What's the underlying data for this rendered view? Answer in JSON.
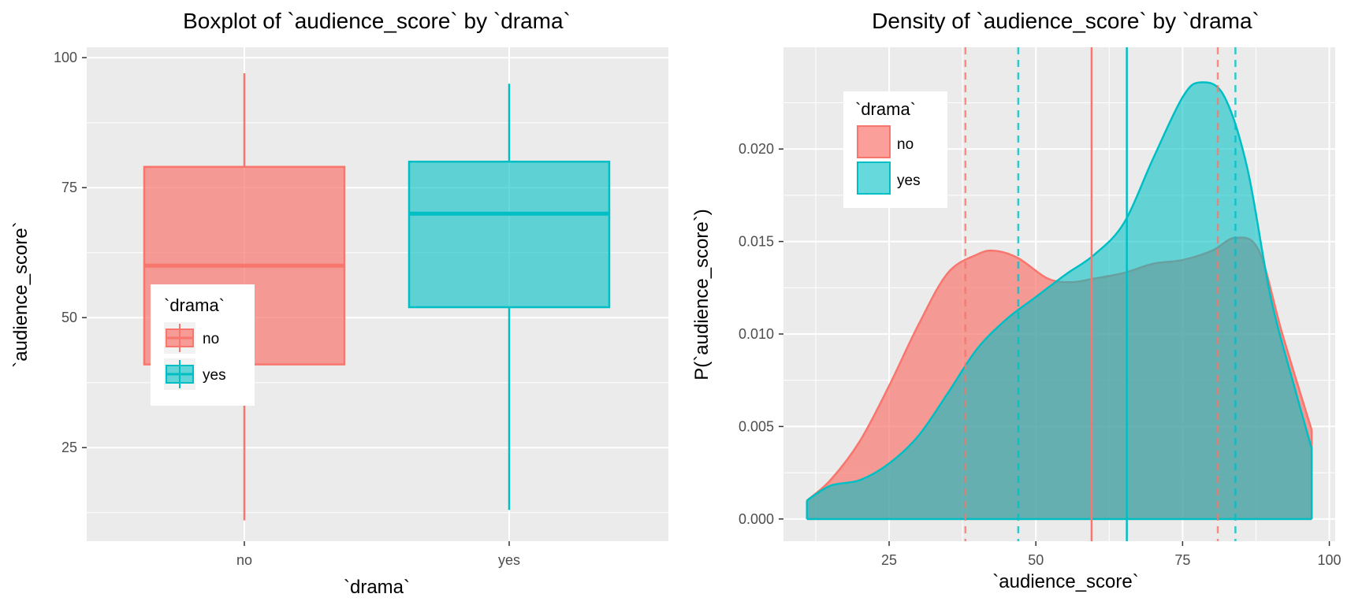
{
  "colors": {
    "no": "#F8766D",
    "yes": "#00BFC4",
    "panel": "#EBEBEB",
    "grid": "#FFFFFF",
    "overlap": "#7AA7A5"
  },
  "chart_data": [
    {
      "type": "box",
      "title": "Boxplot of `audience_score` by `drama`",
      "xlabel": "`drama`",
      "ylabel": "`audience_score`",
      "categories": [
        "no",
        "yes"
      ],
      "ylim": [
        7,
        102
      ],
      "y_ticks": [
        25,
        50,
        75,
        100
      ],
      "y_tick_labels": [
        "25",
        "50",
        "75",
        "100"
      ],
      "grid": true,
      "legend": {
        "title": "`drama`",
        "position": "left-middle",
        "entries": [
          "no",
          "yes"
        ]
      },
      "boxes": [
        {
          "category": "no",
          "min": 11,
          "q1": 41,
          "median": 60,
          "q3": 79,
          "max": 97
        },
        {
          "category": "yes",
          "min": 13,
          "q1": 52,
          "median": 70,
          "q3": 80,
          "max": 95
        }
      ]
    },
    {
      "type": "area",
      "title": "Density of `audience_score` by `drama`",
      "xlabel": "`audience_score`",
      "ylabel": "P(`audience_score`)",
      "xlim": [
        7,
        101
      ],
      "ylim": [
        -0.0012,
        0.0255
      ],
      "x_ticks": [
        25,
        50,
        75,
        100
      ],
      "x_tick_labels": [
        "25",
        "50",
        "75",
        "100"
      ],
      "y_ticks": [
        0,
        0.005,
        0.01,
        0.015,
        0.02
      ],
      "y_tick_labels": [
        "0.000",
        "0.005",
        "0.010",
        "0.015",
        "0.020"
      ],
      "grid": true,
      "legend": {
        "title": "`drama`",
        "position": "top-left",
        "entries": [
          "no",
          "yes"
        ]
      },
      "series": [
        {
          "name": "no",
          "x": [
            11,
            15,
            20,
            25,
            30,
            35,
            40,
            43,
            47,
            52,
            56,
            60,
            65,
            70,
            75,
            80,
            84,
            88,
            92,
            97
          ],
          "y": [
            0.001,
            0.0021,
            0.0042,
            0.0072,
            0.0105,
            0.0133,
            0.0143,
            0.0145,
            0.0141,
            0.013,
            0.0128,
            0.013,
            0.0133,
            0.0138,
            0.014,
            0.0145,
            0.0152,
            0.0145,
            0.01,
            0.0048
          ],
          "mean": 59.5,
          "quantiles": [
            38,
            81
          ]
        },
        {
          "name": "yes",
          "x": [
            11,
            15,
            20,
            25,
            30,
            35,
            40,
            45,
            50,
            55,
            60,
            65,
            70,
            75,
            78,
            82,
            86,
            90,
            94,
            97
          ],
          "y": [
            0.001,
            0.0018,
            0.0021,
            0.003,
            0.0045,
            0.0068,
            0.0092,
            0.0108,
            0.012,
            0.0132,
            0.0143,
            0.016,
            0.0195,
            0.0228,
            0.0236,
            0.0229,
            0.019,
            0.012,
            0.0072,
            0.0038
          ],
          "mean": 65.5,
          "quantiles": [
            47,
            84
          ]
        }
      ]
    }
  ]
}
